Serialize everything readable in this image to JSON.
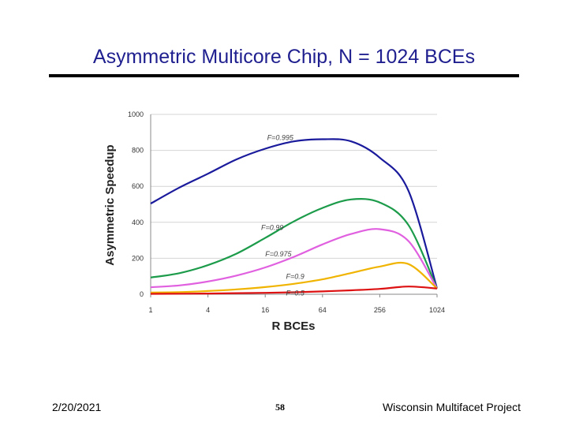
{
  "slide": {
    "title": "Asymmetric Multicore Chip, N = 1024 BCEs"
  },
  "footer": {
    "date": "2/20/2021",
    "page": "58",
    "project": "Wisconsin Multifacet Project"
  },
  "chart_data": {
    "type": "line",
    "title": "",
    "xlabel": "R BCEs",
    "ylabel": "Asymmetric Speedup",
    "x_scale": "log2",
    "xlim": [
      1,
      1024
    ],
    "ylim": [
      0,
      1000
    ],
    "x_ticks": [
      1,
      4,
      16,
      64,
      256,
      1024
    ],
    "x_tick_labels": [
      "1",
      "4",
      "16",
      "64",
      "256",
      "1024"
    ],
    "y_ticks": [
      0,
      200,
      400,
      600,
      800,
      1000
    ],
    "y_tick_labels": [
      "0",
      "200",
      "400",
      "600",
      "800",
      "1000"
    ],
    "grid": "horizontal",
    "x": [
      1,
      2,
      4,
      8,
      16,
      32,
      64,
      128,
      256,
      512,
      1024
    ],
    "series": [
      {
        "name": "F=0.995",
        "color": "#1a1a9c",
        "values": [
          504,
          593,
          670,
          750,
          809,
          850,
          862,
          850,
          759,
          576,
          32
        ]
      },
      {
        "name": "F=0.99",
        "color": "#1c9b4a",
        "values": [
          93,
          117,
          162,
          226,
          313,
          405,
          480,
          527,
          510,
          385,
          32
        ]
      },
      {
        "name": "F=0.975",
        "color": "#e060e0",
        "values": [
          39,
          49,
          71,
          104,
          149,
          208,
          277,
          335,
          362,
          296,
          32
        ]
      },
      {
        "name": "F=0.9",
        "color": "#f0b400",
        "values": [
          9,
          12,
          18,
          27,
          40,
          58,
          83,
          118,
          154,
          168,
          32
        ]
      },
      {
        "name": "F=0.5",
        "color": "#dd1111",
        "values": [
          2,
          3,
          4,
          6,
          8,
          11,
          16,
          22,
          30,
          43,
          32
        ]
      }
    ]
  }
}
